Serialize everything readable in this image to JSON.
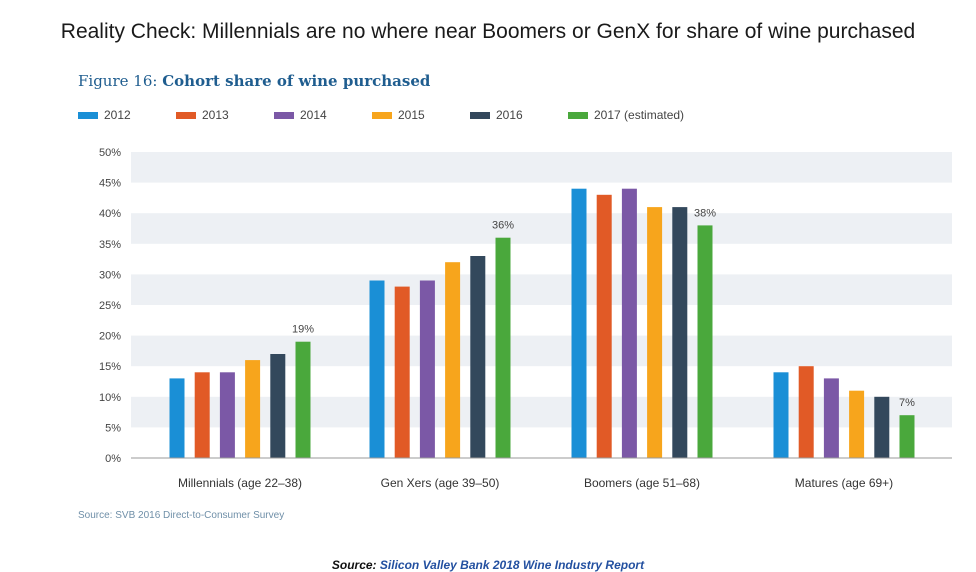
{
  "headline": "Reality Check: Millennials are no where near Boomers or GenX for share of wine purchased",
  "figure": {
    "prefix": "Figure 16:",
    "title": "Cohort share of wine purchased"
  },
  "source_note": "Source: SVB 2016 Direct-to-Consumer Survey",
  "footer": {
    "label": "Source:",
    "link_text": "Silicon Valley Bank 2018 Wine Industry Report"
  },
  "chart_data": {
    "type": "bar",
    "title": "Cohort share of wine purchased",
    "xlabel": "",
    "ylabel": "",
    "ylim": [
      0,
      50
    ],
    "y_ticks": [
      "0%",
      "5%",
      "10%",
      "15%",
      "20%",
      "25%",
      "30%",
      "35%",
      "40%",
      "45%",
      "50%"
    ],
    "y_tick_values": [
      0,
      5,
      10,
      15,
      20,
      25,
      30,
      35,
      40,
      45,
      50
    ],
    "categories": [
      "Millennials (age 22–38)",
      "Gen Xers (age 39–50)",
      "Boomers (age 51–68)",
      "Matures (age 69+)"
    ],
    "series": [
      {
        "name": "2012",
        "color": "#1a8fd6",
        "values": [
          13,
          29,
          44,
          14
        ]
      },
      {
        "name": "2013",
        "color": "#e15a26",
        "values": [
          14,
          28,
          43,
          15
        ]
      },
      {
        "name": "2014",
        "color": "#7b58a6",
        "values": [
          14,
          29,
          44,
          13
        ]
      },
      {
        "name": "2015",
        "color": "#f7a51c",
        "values": [
          16,
          32,
          41,
          11
        ]
      },
      {
        "name": "2016",
        "color": "#33485c",
        "values": [
          17,
          33,
          41,
          10
        ]
      },
      {
        "name": "2017 (estimated)",
        "color": "#4aa83c",
        "values": [
          19,
          36,
          38,
          7
        ]
      }
    ],
    "data_labels": [
      {
        "series": 5,
        "category": 0,
        "text": "19%"
      },
      {
        "series": 5,
        "category": 1,
        "text": "36%"
      },
      {
        "series": 5,
        "category": 2,
        "text": "38%"
      },
      {
        "series": 5,
        "category": 3,
        "text": "7%"
      }
    ],
    "grid": true,
    "band_color": "#edf0f4",
    "legend_position": "top-left"
  }
}
